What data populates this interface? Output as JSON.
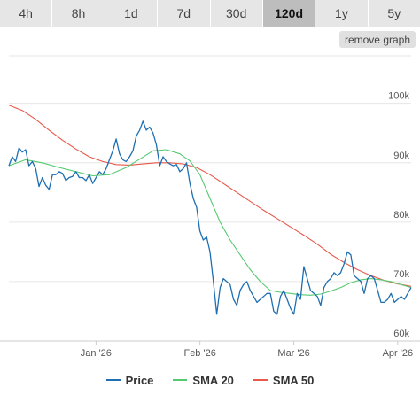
{
  "tabs": [
    {
      "label": "4h",
      "active": false
    },
    {
      "label": "8h",
      "active": false
    },
    {
      "label": "1d",
      "active": false
    },
    {
      "label": "7d",
      "active": false
    },
    {
      "label": "30d",
      "active": false
    },
    {
      "label": "120d",
      "active": true
    },
    {
      "label": "1y",
      "active": false
    },
    {
      "label": "5y",
      "active": false
    }
  ],
  "remove_graph_label": "remove graph",
  "colors": {
    "price": "#1f6fb2",
    "sma20": "#55c970",
    "sma50": "#e8584a",
    "grid": "#e6e6e6",
    "axis_text": "#555555"
  },
  "chart_data": {
    "type": "line",
    "title": "",
    "xlabel": "",
    "ylabel": "",
    "ylim": [
      60000,
      108000
    ],
    "y_ticks": [
      60000,
      70000,
      80000,
      90000,
      100000
    ],
    "y_tick_labels": [
      "60k",
      "70k",
      "80k",
      "90k",
      "100k"
    ],
    "x_ticks": [
      "2026-01-01",
      "2026-02-01",
      "2026-03-01",
      "2026-04-01"
    ],
    "x_tick_labels": [
      "Jan '26",
      "Feb '26",
      "Mar '26",
      "Apr '26"
    ],
    "x_range": [
      "2025-12-06",
      "2026-04-05"
    ],
    "legend_position": "bottom",
    "grid": true,
    "series": [
      {
        "name": "Price",
        "points": [
          [
            "2025-12-06",
            89500
          ],
          [
            "2025-12-07",
            91000
          ],
          [
            "2025-12-08",
            90200
          ],
          [
            "2025-12-09",
            92500
          ],
          [
            "2025-12-10",
            91800
          ],
          [
            "2025-12-11",
            92200
          ],
          [
            "2025-12-12",
            89500
          ],
          [
            "2025-12-13",
            90200
          ],
          [
            "2025-12-14",
            89000
          ],
          [
            "2025-12-15",
            86000
          ],
          [
            "2025-12-16",
            87500
          ],
          [
            "2025-12-17",
            86200
          ],
          [
            "2025-12-18",
            85500
          ],
          [
            "2025-12-19",
            88000
          ],
          [
            "2025-12-20",
            88000
          ],
          [
            "2025-12-21",
            88500
          ],
          [
            "2025-12-22",
            88200
          ],
          [
            "2025-12-23",
            87000
          ],
          [
            "2025-12-24",
            87500
          ],
          [
            "2025-12-25",
            87700
          ],
          [
            "2025-12-26",
            88500
          ],
          [
            "2025-12-27",
            87500
          ],
          [
            "2025-12-28",
            87500
          ],
          [
            "2025-12-29",
            87000
          ],
          [
            "2025-12-30",
            88000
          ],
          [
            "2025-12-31",
            86500
          ],
          [
            "2026-01-01",
            87500
          ],
          [
            "2026-01-02",
            88500
          ],
          [
            "2026-01-03",
            88000
          ],
          [
            "2026-01-04",
            89000
          ],
          [
            "2026-01-05",
            90500
          ],
          [
            "2026-01-06",
            92000
          ],
          [
            "2026-01-07",
            94000
          ],
          [
            "2026-01-08",
            91500
          ],
          [
            "2026-01-09",
            90500
          ],
          [
            "2026-01-10",
            90200
          ],
          [
            "2026-01-11",
            91000
          ],
          [
            "2026-01-12",
            92000
          ],
          [
            "2026-01-13",
            94500
          ],
          [
            "2026-01-14",
            95500
          ],
          [
            "2026-01-15",
            97000
          ],
          [
            "2026-01-16",
            95500
          ],
          [
            "2026-01-17",
            96000
          ],
          [
            "2026-01-18",
            95000
          ],
          [
            "2026-01-19",
            93000
          ],
          [
            "2026-01-20",
            89500
          ],
          [
            "2026-01-21",
            91000
          ],
          [
            "2026-01-22",
            90200
          ],
          [
            "2026-01-23",
            89800
          ],
          [
            "2026-01-24",
            89500
          ],
          [
            "2026-01-25",
            89700
          ],
          [
            "2026-01-26",
            88500
          ],
          [
            "2026-01-27",
            89000
          ],
          [
            "2026-01-28",
            90000
          ],
          [
            "2026-01-29",
            86500
          ],
          [
            "2026-01-30",
            84000
          ],
          [
            "2026-01-31",
            82500
          ],
          [
            "2026-02-01",
            78500
          ],
          [
            "2026-02-02",
            77000
          ],
          [
            "2026-02-03",
            77500
          ],
          [
            "2026-02-04",
            75000
          ],
          [
            "2026-02-05",
            70000
          ],
          [
            "2026-02-06",
            64500
          ],
          [
            "2026-02-07",
            69000
          ],
          [
            "2026-02-08",
            70500
          ],
          [
            "2026-02-09",
            70000
          ],
          [
            "2026-02-10",
            69500
          ],
          [
            "2026-02-11",
            67000
          ],
          [
            "2026-02-12",
            66000
          ],
          [
            "2026-02-13",
            68500
          ],
          [
            "2026-02-14",
            69500
          ],
          [
            "2026-02-15",
            70000
          ],
          [
            "2026-02-16",
            68500
          ],
          [
            "2026-02-17",
            67500
          ],
          [
            "2026-02-18",
            66500
          ],
          [
            "2026-02-19",
            67000
          ],
          [
            "2026-02-20",
            67500
          ],
          [
            "2026-02-21",
            68000
          ],
          [
            "2026-02-22",
            68000
          ],
          [
            "2026-02-23",
            65000
          ],
          [
            "2026-02-24",
            64500
          ],
          [
            "2026-02-25",
            67500
          ],
          [
            "2026-02-26",
            68500
          ],
          [
            "2026-02-27",
            67000
          ],
          [
            "2026-02-28",
            65500
          ],
          [
            "2026-03-01",
            64500
          ],
          [
            "2026-03-02",
            68000
          ],
          [
            "2026-03-03",
            67000
          ],
          [
            "2026-03-04",
            72500
          ],
          [
            "2026-03-05",
            70500
          ],
          [
            "2026-03-06",
            68500
          ],
          [
            "2026-03-07",
            68000
          ],
          [
            "2026-03-08",
            67500
          ],
          [
            "2026-03-09",
            66000
          ],
          [
            "2026-03-10",
            69000
          ],
          [
            "2026-03-11",
            70000
          ],
          [
            "2026-03-12",
            70500
          ],
          [
            "2026-03-13",
            71500
          ],
          [
            "2026-03-14",
            71000
          ],
          [
            "2026-03-15",
            71500
          ],
          [
            "2026-03-16",
            73000
          ],
          [
            "2026-03-17",
            75000
          ],
          [
            "2026-03-18",
            74500
          ],
          [
            "2026-03-19",
            71000
          ],
          [
            "2026-03-20",
            70500
          ],
          [
            "2026-03-21",
            70000
          ],
          [
            "2026-03-22",
            68000
          ],
          [
            "2026-03-23",
            70500
          ],
          [
            "2026-03-24",
            71000
          ],
          [
            "2026-03-25",
            70500
          ],
          [
            "2026-03-26",
            68500
          ],
          [
            "2026-03-27",
            66500
          ],
          [
            "2026-03-28",
            66500
          ],
          [
            "2026-03-29",
            67000
          ],
          [
            "2026-03-30",
            68000
          ],
          [
            "2026-03-31",
            66500
          ],
          [
            "2026-04-01",
            67000
          ],
          [
            "2026-04-02",
            67500
          ],
          [
            "2026-04-03",
            67000
          ],
          [
            "2026-04-04",
            68000
          ],
          [
            "2026-04-05",
            69000
          ]
        ]
      },
      {
        "name": "SMA 20",
        "points": [
          [
            "2025-12-06",
            89500
          ],
          [
            "2025-12-11",
            90500
          ],
          [
            "2025-12-16",
            90000
          ],
          [
            "2025-12-21",
            89200
          ],
          [
            "2025-12-26",
            88500
          ],
          [
            "2025-12-31",
            87800
          ],
          [
            "2026-01-05",
            88000
          ],
          [
            "2026-01-10",
            89200
          ],
          [
            "2026-01-14",
            90600
          ],
          [
            "2026-01-18",
            92000
          ],
          [
            "2026-01-22",
            92200
          ],
          [
            "2026-01-26",
            91500
          ],
          [
            "2026-01-29",
            90300
          ],
          [
            "2026-02-01",
            88000
          ],
          [
            "2026-02-04",
            84000
          ],
          [
            "2026-02-07",
            80000
          ],
          [
            "2026-02-10",
            77000
          ],
          [
            "2026-02-13",
            74500
          ],
          [
            "2026-02-16",
            72000
          ],
          [
            "2026-02-19",
            70000
          ],
          [
            "2026-02-22",
            68500
          ],
          [
            "2026-02-25",
            68200
          ],
          [
            "2026-02-28",
            68000
          ],
          [
            "2026-03-03",
            67800
          ],
          [
            "2026-03-06",
            67700
          ],
          [
            "2026-03-09",
            67900
          ],
          [
            "2026-03-12",
            68400
          ],
          [
            "2026-03-15",
            69000
          ],
          [
            "2026-03-18",
            69800
          ],
          [
            "2026-03-21",
            70300
          ],
          [
            "2026-03-24",
            70500
          ],
          [
            "2026-03-27",
            70300
          ],
          [
            "2026-03-30",
            70000
          ],
          [
            "2026-04-02",
            69500
          ],
          [
            "2026-04-05",
            69000
          ]
        ]
      },
      {
        "name": "SMA 50",
        "points": [
          [
            "2025-12-06",
            99700
          ],
          [
            "2025-12-10",
            98800
          ],
          [
            "2025-12-14",
            97300
          ],
          [
            "2025-12-18",
            95500
          ],
          [
            "2025-12-22",
            93800
          ],
          [
            "2025-12-26",
            92300
          ],
          [
            "2025-12-30",
            91000
          ],
          [
            "2026-01-03",
            90200
          ],
          [
            "2026-01-07",
            89700
          ],
          [
            "2026-01-11",
            89600
          ],
          [
            "2026-01-15",
            89800
          ],
          [
            "2026-01-19",
            90000
          ],
          [
            "2026-01-23",
            90000
          ],
          [
            "2026-01-27",
            89800
          ],
          [
            "2026-01-31",
            89200
          ],
          [
            "2026-02-04",
            88000
          ],
          [
            "2026-02-08",
            86500
          ],
          [
            "2026-02-12",
            85000
          ],
          [
            "2026-02-16",
            83500
          ],
          [
            "2026-02-20",
            82000
          ],
          [
            "2026-02-24",
            80600
          ],
          [
            "2026-02-28",
            79200
          ],
          [
            "2026-03-04",
            77800
          ],
          [
            "2026-03-08",
            76300
          ],
          [
            "2026-03-12",
            74600
          ],
          [
            "2026-03-16",
            73200
          ],
          [
            "2026-03-20",
            72000
          ],
          [
            "2026-03-24",
            71000
          ],
          [
            "2026-03-28",
            70200
          ],
          [
            "2026-04-01",
            69600
          ],
          [
            "2026-04-05",
            69200
          ]
        ]
      }
    ]
  }
}
